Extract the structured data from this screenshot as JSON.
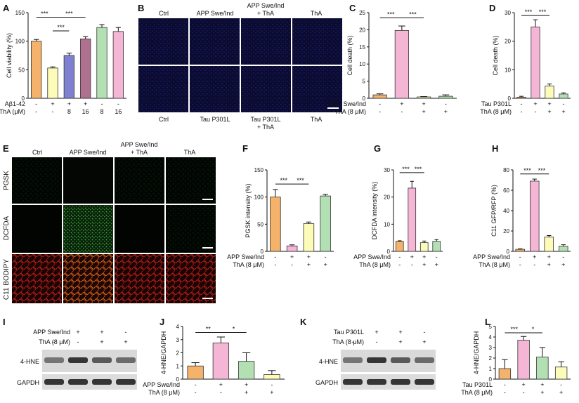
{
  "colors": {
    "orange": "#f5b26b",
    "yellow": "#fdfbb8",
    "blue": "#8080d0",
    "plum": "#b07090",
    "green": "#b3e0b3",
    "pink": "#f5b5d5",
    "micro_bg": "#0b0b2e",
    "red_stain": "#c02018",
    "gel_bg": "#d9d9d9",
    "band": "#222222"
  },
  "panels": [
    {
      "letter": "A",
      "ylabel": "Cell viability (%)",
      "ylim": [
        0,
        150
      ],
      "yticks": [
        "0",
        "50",
        "100",
        "150"
      ],
      "colors": [
        "orange",
        "yellow",
        "blue",
        "plum",
        "green",
        "pink"
      ],
      "rows": [
        {
          "label": "Aβ1-42",
          "values": [
            "-",
            "+",
            "+",
            "+",
            "-",
            "-"
          ]
        },
        {
          "label": "ThA (μM)",
          "values": [
            "-",
            "-",
            "8",
            "16",
            "8",
            "16"
          ]
        }
      ],
      "sig": [
        {
          "i": 0,
          "j": 1,
          "text": "***",
          "y": 142
        },
        {
          "i": 1,
          "j": 3,
          "text": "***",
          "y": 142
        },
        {
          "i": 1,
          "j": 2,
          "text": "***",
          "y": 118
        }
      ]
    },
    {
      "letter": "C",
      "ylabel": "Cell death (%)",
      "ylim": [
        0,
        25
      ],
      "yticks": [
        "0",
        "5",
        "10",
        "15",
        "20",
        "25"
      ],
      "colors": [
        "orange",
        "pink",
        "yellow",
        "green"
      ],
      "rows": [
        {
          "label": "APP Swe/Ind",
          "values": [
            "-",
            "+",
            "+",
            "-"
          ]
        },
        {
          "label": "ThA (8 μM)",
          "values": [
            "-",
            "-",
            "+",
            "+"
          ]
        }
      ],
      "sig": [
        {
          "i": 0,
          "j": 1,
          "text": "***",
          "y": 23.5
        },
        {
          "i": 1,
          "j": 2,
          "text": "***",
          "y": 23.5
        }
      ]
    },
    {
      "letter": "D",
      "ylabel": "Cell death (%)",
      "ylim": [
        0,
        30
      ],
      "yticks": [
        "0",
        "10",
        "20",
        "30"
      ],
      "colors": [
        "orange",
        "pink",
        "yellow",
        "green"
      ],
      "rows": [
        {
          "label": "Tau P301L",
          "values": [
            "-",
            "+",
            "+",
            "-"
          ]
        },
        {
          "label": "ThA (8 μM)",
          "values": [
            "-",
            "-",
            "+",
            "+"
          ]
        }
      ],
      "sig": [
        {
          "i": 0,
          "j": 1,
          "text": "***",
          "y": 29
        },
        {
          "i": 1,
          "j": 2,
          "text": "***",
          "y": 29
        }
      ]
    },
    {
      "letter": "F",
      "ylabel": "PGSK intensity (%)",
      "ylim": [
        0,
        150
      ],
      "yticks": [
        "0",
        "50",
        "100",
        "150"
      ],
      "colors": [
        "orange",
        "pink",
        "yellow",
        "green"
      ],
      "rows": [
        {
          "label": "APP Swe/Ind",
          "values": [
            "-",
            "+",
            "+",
            "-"
          ]
        },
        {
          "label": "ThA (8 μM)",
          "values": [
            "-",
            "-",
            "+",
            "+"
          ]
        }
      ],
      "sig": [
        {
          "i": 0,
          "j": 1,
          "text": "***",
          "y": 124
        },
        {
          "i": 1,
          "j": 2,
          "text": "***",
          "y": 124
        }
      ]
    },
    {
      "letter": "G",
      "ylabel": "DCFDA intensity (%)",
      "ylim": [
        0,
        30
      ],
      "yticks": [
        "0",
        "10",
        "20",
        "30"
      ],
      "colors": [
        "orange",
        "pink",
        "yellow",
        "green"
      ],
      "rows": [
        {
          "label": "APP Swe/Ind",
          "values": [
            "-",
            "+",
            "+",
            "-"
          ]
        },
        {
          "label": "ThA (8 μM)",
          "values": [
            "-",
            "-",
            "+",
            "+"
          ]
        }
      ],
      "sig": [
        {
          "i": 0,
          "j": 1,
          "text": "***",
          "y": 29
        },
        {
          "i": 1,
          "j": 2,
          "text": "***",
          "y": 29
        }
      ]
    },
    {
      "letter": "H",
      "ylabel": "C11 GFP/RFP (%)",
      "ylim": [
        0,
        80
      ],
      "yticks": [
        "0",
        "20",
        "40",
        "60",
        "80"
      ],
      "colors": [
        "orange",
        "pink",
        "yellow",
        "green"
      ],
      "rows": [
        {
          "label": "APP Swe/Ind",
          "values": [
            "-",
            "+",
            "+",
            "-"
          ]
        },
        {
          "label": "ThA (8 μM)",
          "values": [
            "-",
            "-",
            "+",
            "+"
          ]
        }
      ],
      "sig": [
        {
          "i": 0,
          "j": 1,
          "text": "***",
          "y": 76
        },
        {
          "i": 1,
          "j": 2,
          "text": "***",
          "y": 76
        }
      ]
    },
    {
      "letter": "J",
      "ylabel": "4-HNE/GAPDH",
      "ylim": [
        0,
        4
      ],
      "yticks": [
        "0",
        "1",
        "2",
        "3",
        "4"
      ],
      "colors": [
        "orange",
        "pink",
        "green",
        "yellow"
      ],
      "rows": [
        {
          "label": "APP Swe/Ind",
          "values": [
            "-",
            "+",
            "+",
            "-"
          ]
        },
        {
          "label": "ThA (8 μM)",
          "values": [
            "-",
            "-",
            "+",
            "+"
          ]
        }
      ],
      "sig": [
        {
          "i": 0,
          "j": 1,
          "text": "**",
          "y": 3.55
        },
        {
          "i": 1,
          "j": 2,
          "text": "*",
          "y": 3.55
        }
      ]
    },
    {
      "letter": "L",
      "ylabel": "4-HNE/GAPDH",
      "ylim": [
        0,
        5
      ],
      "yticks": [
        "0",
        "1",
        "2",
        "3",
        "4",
        "5"
      ],
      "colors": [
        "orange",
        "pink",
        "green",
        "yellow"
      ],
      "rows": [
        {
          "label": "Tau P301L",
          "values": [
            "-",
            "+",
            "+",
            "-"
          ]
        },
        {
          "label": "ThA (8 μM)",
          "values": [
            "-",
            "-",
            "+",
            "+"
          ]
        }
      ],
      "sig": [
        {
          "i": 0,
          "j": 1,
          "text": "***",
          "y": 4.4
        },
        {
          "i": 1,
          "j": 2,
          "text": "*",
          "y": 4.4
        }
      ]
    }
  ],
  "chart_data": [
    {
      "panel": "A",
      "type": "bar",
      "ylabel": "Cell viability (%)",
      "ylim": [
        0,
        150
      ],
      "values": [
        100,
        53,
        75,
        104,
        124,
        117
      ],
      "errors": [
        3,
        2,
        4,
        4,
        5,
        7
      ]
    },
    {
      "panel": "C",
      "type": "bar",
      "ylabel": "Cell death (%)",
      "ylim": [
        0,
        25
      ],
      "values": [
        1.0,
        19.8,
        0.4,
        0.6
      ],
      "errors": [
        0.3,
        1.3,
        0.1,
        0.4
      ]
    },
    {
      "panel": "D",
      "type": "bar",
      "ylabel": "Cell death (%)",
      "ylim": [
        0,
        30
      ],
      "values": [
        0.4,
        25,
        4.3,
        1.5
      ],
      "errors": [
        0.3,
        2.5,
        0.7,
        0.4
      ]
    },
    {
      "panel": "F",
      "type": "bar",
      "ylabel": "PGSK intensity (%)",
      "ylim": [
        0,
        150
      ],
      "values": [
        100,
        10,
        51,
        102
      ],
      "errors": [
        14,
        2,
        3,
        3
      ]
    },
    {
      "panel": "G",
      "type": "bar",
      "ylabel": "DCFDA intensity (%)",
      "ylim": [
        0,
        30
      ],
      "values": [
        3.7,
        23.3,
        3.2,
        3.7
      ],
      "errors": [
        0.2,
        2.5,
        0.6,
        0.6
      ]
    },
    {
      "panel": "H",
      "type": "bar",
      "ylabel": "C11 GFP/RFP (%)",
      "ylim": [
        0,
        80
      ],
      "values": [
        2,
        69,
        14,
        5
      ],
      "errors": [
        0.5,
        2,
        1.5,
        1.5
      ]
    },
    {
      "panel": "J",
      "type": "bar",
      "ylabel": "4-HNE/GAPDH",
      "ylim": [
        0,
        4
      ],
      "values": [
        1.0,
        2.75,
        1.35,
        0.35
      ],
      "errors": [
        0.25,
        0.45,
        0.65,
        0.3
      ]
    },
    {
      "panel": "L",
      "type": "bar",
      "ylabel": "4-HNE/GAPDH",
      "ylim": [
        0,
        5
      ],
      "values": [
        1.0,
        3.7,
        2.1,
        1.15
      ],
      "errors": [
        0.85,
        0.35,
        0.9,
        0.5
      ]
    }
  ],
  "micro_B": {
    "letter": "B",
    "top": {
      "col1": "Ctrl",
      "col2": "APP Swe/Ind",
      "col3_line1": "APP Swe/Ind",
      "col3_line2": "+ ThA",
      "col4": "ThA"
    },
    "bottom": {
      "col1": "Ctrl",
      "col2": "Tau P301L",
      "col3_line1": "Tau P301L",
      "col3_line2": "+ ThA",
      "col4": "ThA"
    }
  },
  "micro_E": {
    "letter": "E",
    "cols": {
      "col1": "Ctrl",
      "col2": "APP Swe/Ind",
      "col3_line1": "APP Swe/Ind",
      "col3_line2": "+ ThA",
      "col4": "ThA"
    },
    "rows": {
      "r1": "PGSK",
      "r2": "DCFDA",
      "r3": "C11 BODIPY"
    }
  },
  "blot_I": {
    "letter": "I",
    "row1_label": "APP Swe/Ind",
    "row1": [
      "-",
      "+",
      "+",
      "-"
    ],
    "row2_label": "ThA (8 μM)",
    "row2": [
      "-",
      "-",
      "+",
      "+"
    ],
    "band1": "4-HNE",
    "band2": "GAPDH"
  },
  "blot_K": {
    "letter": "K",
    "row1_label": "Tau P301L",
    "row1": [
      "-",
      "+",
      "+",
      "-"
    ],
    "row2_label": "ThA (8 μM)",
    "row2": [
      "-",
      "-",
      "+",
      "+"
    ],
    "band1": "4-HNE",
    "band2": "GAPDH"
  }
}
